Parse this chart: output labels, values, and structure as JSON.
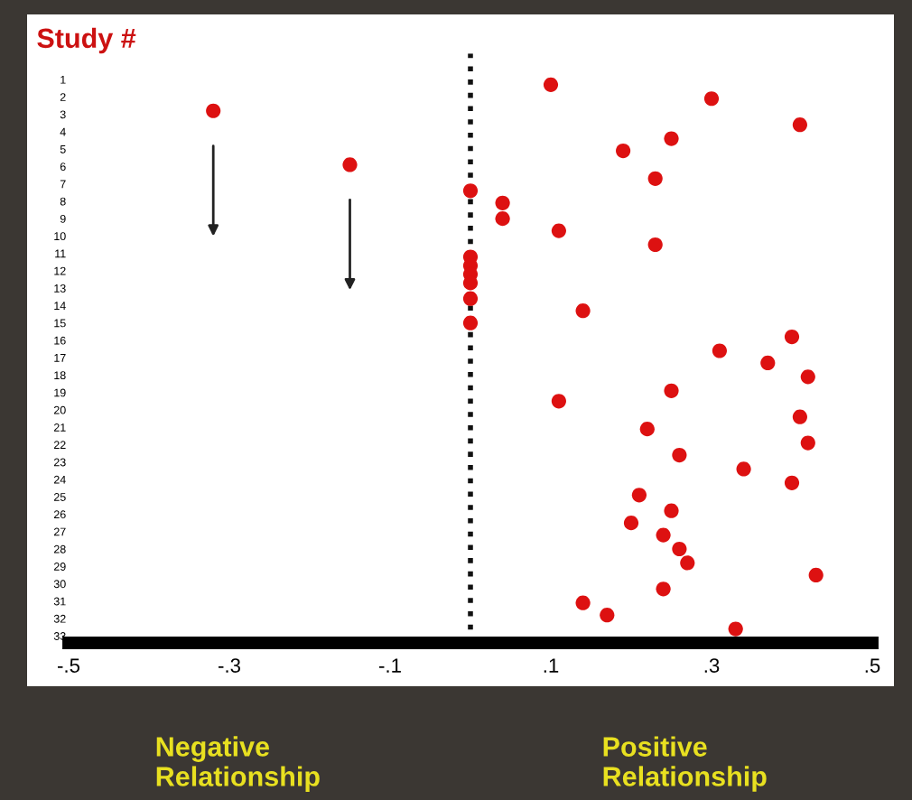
{
  "chart_data": {
    "type": "scatter",
    "ylabel": "Study #",
    "x": [
      0.1,
      0.3,
      0.41,
      0.25,
      0.19,
      0.23,
      0,
      0.04,
      0.04,
      0.11,
      0.23,
      0,
      0,
      0,
      0,
      0,
      0,
      0.14,
      0.4,
      0.31,
      0.37,
      0.42,
      0.25,
      0.11,
      0.41,
      0.22,
      0.42,
      0.26,
      0.34,
      0.4,
      0.21,
      0.25,
      0.2,
      0.24,
      0.26,
      0.27,
      0.43,
      0.24,
      0.14,
      0.17,
      0.33,
      -0.32,
      -0.15
    ],
    "values": [
      1.3,
      2.1,
      3.6,
      4.4,
      5.1,
      6.7,
      7.4,
      8.1,
      9.0,
      9.7,
      10.5,
      11.2,
      11.7,
      12.2,
      12.7,
      13.6,
      15.0,
      14.3,
      15.8,
      16.6,
      17.3,
      18.1,
      18.9,
      19.5,
      20.4,
      21.1,
      21.9,
      22.6,
      23.4,
      24.2,
      24.9,
      25.8,
      26.5,
      27.2,
      28.0,
      28.8,
      29.5,
      30.3,
      31.1,
      31.8,
      32.6,
      2.8,
      5.9
    ],
    "color": "#dd1111",
    "marker": "circle",
    "xlim": [
      -0.5,
      0.5
    ],
    "xticks": [
      {
        "value": -0.5,
        "label": "-.5"
      },
      {
        "value": -0.3,
        "label": "-.3"
      },
      {
        "value": -0.1,
        "label": "-.1"
      },
      {
        "value": 0.1,
        "label": ".1"
      },
      {
        "value": 0.3,
        "label": ".3"
      },
      {
        "value": 0.5,
        "label": ".5"
      }
    ],
    "ylim": [
      33.4,
      -0.5
    ],
    "yticks": [
      1,
      2,
      3,
      4,
      5,
      6,
      7,
      8,
      9,
      10,
      11,
      12,
      13,
      14,
      15,
      16,
      17,
      18,
      19,
      20,
      21,
      22,
      23,
      24,
      25,
      26,
      27,
      28,
      29,
      30,
      31,
      32,
      33
    ],
    "ref_lines": [
      {
        "axis": "x",
        "value": 0,
        "line_style": "dotted",
        "color": "#111111"
      }
    ],
    "annotations": [
      "Negative\nRelationship",
      "Positive\nRelationship"
    ],
    "grid": false
  }
}
